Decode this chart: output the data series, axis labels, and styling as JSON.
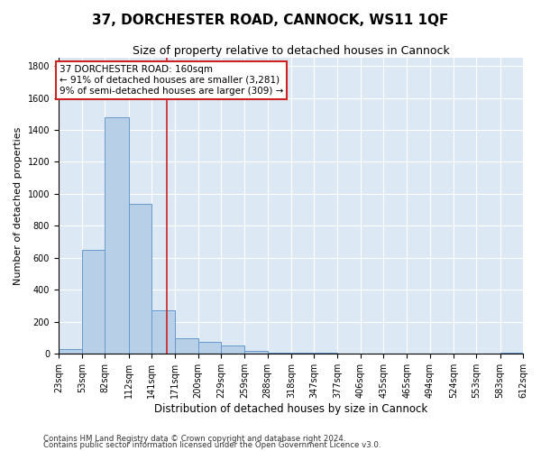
{
  "title": "37, DORCHESTER ROAD, CANNOCK, WS11 1QF",
  "subtitle": "Size of property relative to detached houses in Cannock",
  "xlabel": "Distribution of detached houses by size in Cannock",
  "ylabel": "Number of detached properties",
  "bin_edges": [
    23,
    53,
    82,
    112,
    141,
    171,
    200,
    229,
    259,
    288,
    318,
    347,
    377,
    406,
    435,
    465,
    494,
    524,
    553,
    583,
    612
  ],
  "bin_counts": [
    30,
    650,
    1480,
    940,
    270,
    100,
    75,
    50,
    20,
    8,
    5,
    5,
    3,
    3,
    2,
    2,
    1,
    1,
    1,
    5
  ],
  "bar_color": "#b8cfe8",
  "bar_edge_color": "#6699cc",
  "background_color": "#dde8f5",
  "grid_color": "#ffffff",
  "fig_background": "#ffffff",
  "property_size": 160,
  "vline_color": "#cc2222",
  "annotation_text": "37 DORCHESTER ROAD: 160sqm\n← 91% of detached houses are smaller (3,281)\n9% of semi-detached houses are larger (309) →",
  "annotation_box_edge_color": "#cc2222",
  "footnote1": "Contains HM Land Registry data © Crown copyright and database right 2024.",
  "footnote2": "Contains public sector information licensed under the Open Government Licence v3.0.",
  "ylim": [
    0,
    1850
  ],
  "yticks": [
    0,
    200,
    400,
    600,
    800,
    1000,
    1200,
    1400,
    1600,
    1800
  ],
  "title_fontsize": 11,
  "subtitle_fontsize": 9,
  "tick_label_fontsize": 7,
  "ylabel_fontsize": 8,
  "xlabel_fontsize": 8.5,
  "annotation_fontsize": 7.5
}
